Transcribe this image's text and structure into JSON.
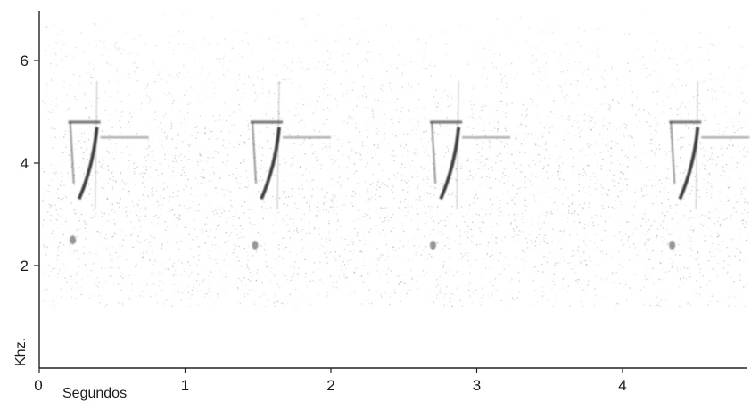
{
  "chart_data": {
    "type": "heatmap",
    "title": "",
    "xlabel": "Segundos",
    "ylabel": "Khz.",
    "xlim": [
      0,
      4.9
    ],
    "ylim": [
      0,
      7.0
    ],
    "x_ticks": [
      {
        "value": 0,
        "label": "0"
      },
      {
        "value": 1,
        "label": "1"
      },
      {
        "value": 2,
        "label": "2"
      },
      {
        "value": 3,
        "label": "3"
      },
      {
        "value": 4,
        "label": "4"
      }
    ],
    "y_ticks": [
      {
        "value": 2,
        "label": "2"
      },
      {
        "value": 4,
        "label": "4"
      },
      {
        "value": 6,
        "label": "6"
      }
    ],
    "grid": false,
    "colormap": "grayscale",
    "colors": {
      "ink": "#111111",
      "noise": "#6a6a6a",
      "axis": "#222222"
    },
    "noise_band_khz": [
      1.2,
      7.0
    ],
    "calls": [
      {
        "start_s": 0.2,
        "low_note_s": 0.23,
        "low_note_khz": 2.5
      },
      {
        "start_s": 1.45,
        "low_note_s": 1.48,
        "low_note_khz": 2.4
      },
      {
        "start_s": 2.68,
        "low_note_s": 2.7,
        "low_note_khz": 2.4
      },
      {
        "start_s": 4.32,
        "low_note_s": 4.34,
        "low_note_khz": 2.4
      }
    ],
    "call_shape": {
      "top_khz": 4.8,
      "top_duration_s": 0.22,
      "tail_khz": 4.5,
      "tail_end_offset_s": 0.55,
      "sweep_top_khz": 4.7,
      "sweep_bottom_khz": 3.3,
      "stem_bottom_khz": 3.6
    }
  }
}
